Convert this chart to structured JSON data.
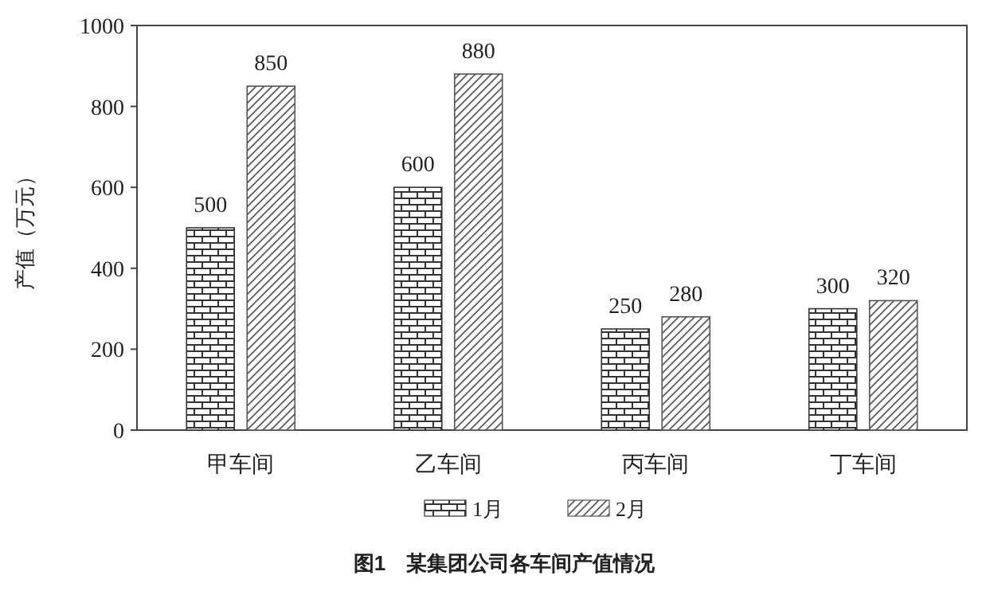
{
  "chart_data": {
    "type": "bar",
    "title": "图1　某集团公司各车间产值情况",
    "ylabel": "产值（万元）",
    "categories": [
      "甲车间",
      "乙车间",
      "丙车间",
      "丁车间"
    ],
    "series": [
      {
        "name": "1月",
        "color": "#333333",
        "values": [
          500,
          600,
          250,
          300
        ]
      },
      {
        "name": "2月",
        "color": "#555555",
        "values": [
          850,
          880,
          280,
          320
        ]
      }
    ],
    "ylim": [
      0,
      1000
    ],
    "yticks": [
      0,
      200,
      400,
      600,
      800,
      1000
    ],
    "data_labels": true,
    "legend": "bottom",
    "grid": false
  }
}
